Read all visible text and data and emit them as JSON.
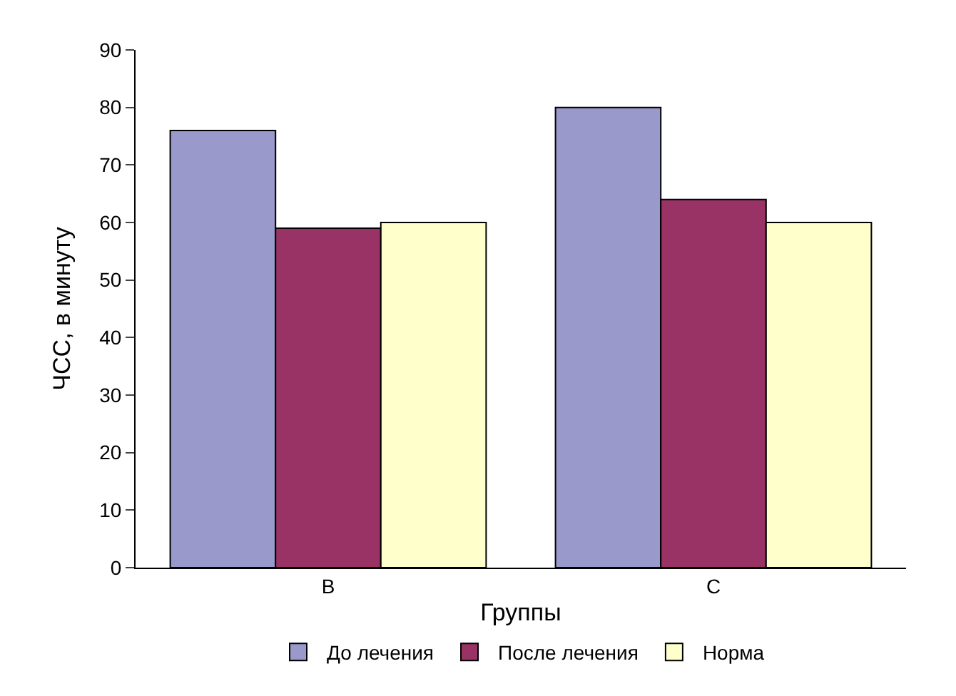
{
  "chart_data": {
    "type": "bar",
    "xlabel": "Группы",
    "ylabel": "ЧСС, в минуту",
    "categories": [
      "B",
      "C"
    ],
    "series": [
      {
        "name": "До лечения",
        "color": "#9999cc",
        "values": [
          76,
          80
        ]
      },
      {
        "name": "После лечения",
        "color": "#993366",
        "values": [
          59,
          64
        ]
      },
      {
        "name": "Норма",
        "color": "#ffffcc",
        "values": [
          60,
          60
        ]
      }
    ],
    "ylim": [
      0,
      90
    ],
    "yticks": [
      0,
      10,
      20,
      30,
      40,
      50,
      60,
      70,
      80,
      90
    ],
    "legend": "bottom"
  }
}
